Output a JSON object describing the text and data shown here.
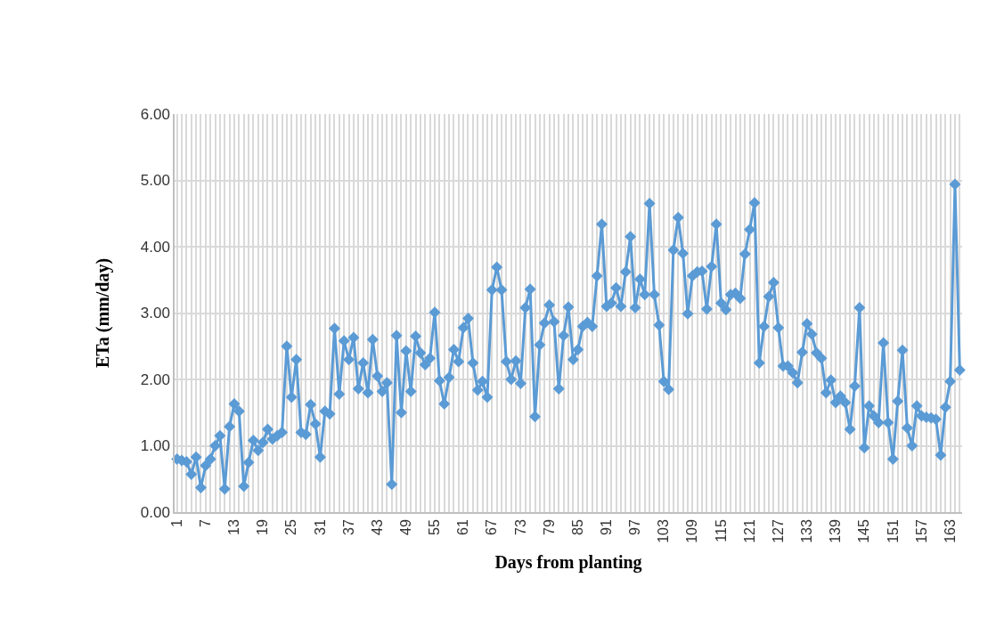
{
  "chart_data": {
    "type": "line",
    "xlabel": "Days from planting",
    "ylabel": "ETa (mm/day)",
    "categories": [
      "1",
      null,
      null,
      null,
      null,
      null,
      "7",
      null,
      null,
      null,
      null,
      null,
      "13",
      null,
      null,
      null,
      null,
      null,
      "19",
      null,
      null,
      null,
      null,
      null,
      "25",
      null,
      null,
      null,
      null,
      null,
      "31",
      null,
      null,
      null,
      null,
      null,
      "37",
      null,
      null,
      null,
      null,
      null,
      "43",
      null,
      null,
      null,
      null,
      null,
      "49",
      null,
      null,
      null,
      null,
      null,
      "55",
      null,
      null,
      null,
      null,
      null,
      "61",
      null,
      null,
      null,
      null,
      null,
      "67",
      null,
      null,
      null,
      null,
      null,
      "73",
      null,
      null,
      null,
      null,
      null,
      "79",
      null,
      null,
      null,
      null,
      null,
      "85",
      null,
      null,
      null,
      null,
      null,
      "91",
      null,
      null,
      null,
      null,
      null,
      "97",
      null,
      null,
      null,
      null,
      null,
      "103",
      null,
      null,
      null,
      null,
      null,
      "109",
      null,
      null,
      null,
      null,
      null,
      "115",
      null,
      null,
      null,
      null,
      null,
      "121",
      null,
      null,
      null,
      null,
      null,
      "127",
      null,
      null,
      null,
      null,
      null,
      "133",
      null,
      null,
      null,
      null,
      null,
      "139",
      null,
      null,
      null,
      null,
      null,
      "145",
      null,
      null,
      null,
      null,
      null,
      "151",
      null,
      null,
      null,
      null,
      null,
      "157",
      null,
      null,
      null,
      null,
      null,
      "163",
      null,
      null
    ],
    "series": [
      {
        "color": "#5b9bd5",
        "values": [
          0.8,
          0.78,
          0.76,
          0.57,
          0.83,
          0.37,
          0.7,
          0.8,
          1.0,
          1.15,
          0.35,
          1.29,
          1.63,
          1.52,
          0.39,
          0.75,
          1.08,
          0.93,
          1.05,
          1.25,
          1.1,
          1.15,
          1.2,
          2.5,
          1.73,
          2.3,
          1.2,
          1.17,
          1.62,
          1.33,
          0.83,
          1.52,
          1.48,
          2.77,
          1.78,
          2.58,
          2.3,
          2.63,
          1.86,
          2.25,
          1.8,
          2.6,
          2.05,
          1.82,
          1.95,
          0.42,
          2.66,
          1.5,
          2.43,
          1.82,
          2.65,
          2.4,
          2.22,
          2.32,
          3.01,
          1.98,
          1.63,
          2.03,
          2.45,
          2.27,
          2.78,
          2.92,
          2.25,
          1.84,
          1.97,
          1.73,
          3.35,
          3.69,
          3.35,
          2.27,
          2.0,
          2.28,
          1.94,
          3.08,
          3.36,
          1.44,
          2.52,
          2.85,
          3.12,
          2.87,
          1.86,
          2.66,
          3.09,
          2.3,
          2.45,
          2.8,
          2.86,
          2.8,
          3.56,
          4.34,
          3.1,
          3.15,
          3.38,
          3.1,
          3.62,
          4.15,
          3.08,
          3.51,
          3.28,
          4.65,
          3.28,
          2.82,
          1.97,
          1.85,
          3.95,
          4.44,
          3.9,
          2.99,
          3.56,
          3.62,
          3.63,
          3.06,
          3.7,
          4.34,
          3.15,
          3.05,
          3.28,
          3.3,
          3.22,
          3.89,
          4.26,
          4.66,
          2.25,
          2.8,
          3.25,
          3.46,
          2.78,
          2.2,
          2.2,
          2.1,
          1.95,
          2.41,
          2.84,
          2.68,
          2.4,
          2.32,
          1.8,
          1.99,
          1.65,
          1.75,
          1.65,
          1.25,
          1.9,
          3.08,
          0.97,
          1.6,
          1.45,
          1.35,
          2.55,
          1.35,
          0.8,
          1.67,
          2.44,
          1.27,
          1.0,
          1.6,
          1.45,
          1.43,
          1.42,
          1.4,
          0.86,
          1.58,
          1.97,
          4.94,
          2.14
        ]
      }
    ],
    "ylim": [
      0,
      6
    ],
    "yticks": [
      {
        "value": 0,
        "label": "0.00"
      },
      {
        "value": 1,
        "label": "1.00"
      },
      {
        "value": 2,
        "label": "2.00"
      },
      {
        "value": 3,
        "label": "3.00"
      },
      {
        "value": 4,
        "label": "4.00"
      },
      {
        "value": 5,
        "label": "5.00"
      },
      {
        "value": 6,
        "label": "6.00"
      }
    ],
    "grid": true,
    "marker": "diamond",
    "line_style": "solid"
  }
}
